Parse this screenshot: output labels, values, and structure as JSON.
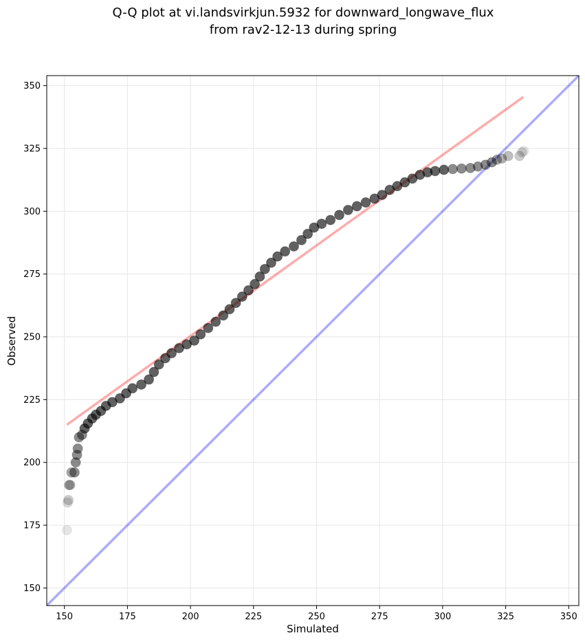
{
  "chart_data": {
    "type": "scatter",
    "title_line1": "Q-Q plot at vi.landsvirkjun.5932 for downward_longwave_flux",
    "title_line2": "from rav2-12-13 during spring",
    "xlabel": "Simulated",
    "ylabel": "Observed",
    "xlim": [
      143,
      354
    ],
    "ylim": [
      143,
      354
    ],
    "xticks": [
      150,
      175,
      200,
      225,
      250,
      275,
      300,
      325,
      350
    ],
    "yticks": [
      150,
      175,
      200,
      225,
      250,
      275,
      300,
      325,
      350
    ],
    "grid": true,
    "identity_line": {
      "name": "1:1 line",
      "color": "#0000ff",
      "from": [
        143,
        143
      ],
      "to": [
        354,
        354
      ]
    },
    "fit_line": {
      "name": "linear fit",
      "color": "#ff0000",
      "from": [
        151,
        215
      ],
      "to": [
        332,
        345.5
      ]
    },
    "point_color": "#000000",
    "quantiles": [
      [
        151,
        173
      ],
      [
        151.3,
        184
      ],
      [
        151.6,
        185
      ],
      [
        151.8,
        191
      ],
      [
        152.3,
        191
      ],
      [
        152.8,
        196
      ],
      [
        154,
        196
      ],
      [
        154.5,
        200
      ],
      [
        155,
        203
      ],
      [
        155.3,
        205.5
      ],
      [
        155.8,
        210
      ],
      [
        157,
        211
      ],
      [
        158,
        213.5
      ],
      [
        159.3,
        215.5
      ],
      [
        161,
        217.5
      ],
      [
        162.5,
        219
      ],
      [
        164.5,
        220.5
      ],
      [
        166.5,
        222.5
      ],
      [
        169,
        224
      ],
      [
        172,
        225.5
      ],
      [
        174.5,
        227.5
      ],
      [
        177,
        229.5
      ],
      [
        180.5,
        231
      ],
      [
        183.5,
        233
      ],
      [
        185.5,
        236
      ],
      [
        187.5,
        239
      ],
      [
        190,
        241.5
      ],
      [
        192.5,
        243.5
      ],
      [
        195.5,
        245.5
      ],
      [
        198.5,
        247
      ],
      [
        201.5,
        248.5
      ],
      [
        204,
        251
      ],
      [
        207,
        253.5
      ],
      [
        210,
        256
      ],
      [
        213,
        258.5
      ],
      [
        215.5,
        261
      ],
      [
        218,
        263.5
      ],
      [
        220.5,
        266
      ],
      [
        223,
        268.5
      ],
      [
        225.5,
        271
      ],
      [
        227.5,
        274
      ],
      [
        229.5,
        277
      ],
      [
        232,
        279.5
      ],
      [
        234.5,
        282
      ],
      [
        237.5,
        284
      ],
      [
        241,
        286
      ],
      [
        244,
        288.5
      ],
      [
        246.5,
        291
      ],
      [
        249,
        293.5
      ],
      [
        252,
        295
      ],
      [
        255.5,
        296.5
      ],
      [
        259,
        298.5
      ],
      [
        262.5,
        300.5
      ],
      [
        266,
        302
      ],
      [
        269.5,
        303.5
      ],
      [
        273,
        305
      ],
      [
        276,
        306.5
      ],
      [
        279,
        308.5
      ],
      [
        282,
        310
      ],
      [
        285,
        311.5
      ],
      [
        288,
        313
      ],
      [
        291,
        314.5
      ],
      [
        294,
        315.5
      ],
      [
        297,
        316
      ],
      [
        300.5,
        316.5
      ],
      [
        304,
        316.8
      ],
      [
        307.5,
        317
      ],
      [
        311,
        317.2
      ],
      [
        314,
        317.8
      ],
      [
        317,
        318.5
      ],
      [
        319.5,
        319.5
      ],
      [
        321.5,
        320.5
      ],
      [
        323.5,
        321
      ],
      [
        326,
        322
      ],
      [
        330.5,
        322
      ],
      [
        331.5,
        323.5
      ],
      [
        332.2,
        324
      ]
    ]
  }
}
